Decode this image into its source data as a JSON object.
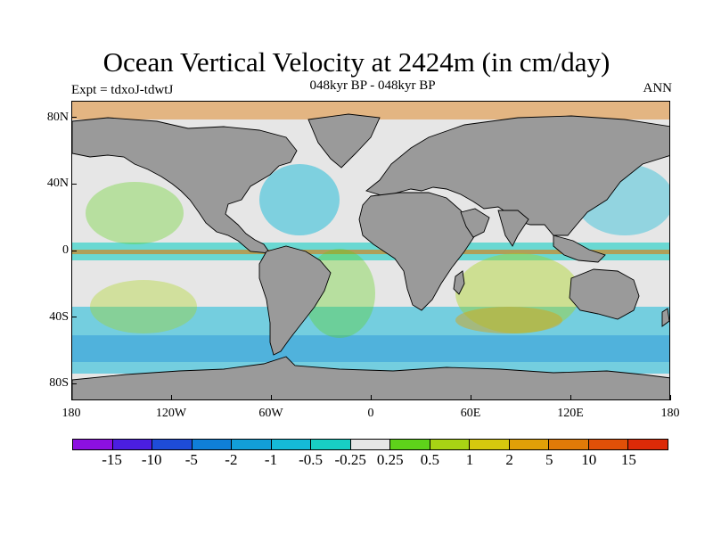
{
  "title": "Ocean Vertical Velocity at 2424m (in cm/day)",
  "subtitle_left": "Expt = tdxoJ-tdwtJ",
  "subtitle_center": "048kyr BP - 048kyr BP",
  "subtitle_right": "ANN",
  "map": {
    "projection": "cylindrical equidistant",
    "lon_range": [
      -180,
      180
    ],
    "lat_range": [
      -90,
      90
    ],
    "lat_labels": [
      {
        "lat": 80,
        "text": "80N"
      },
      {
        "lat": 40,
        "text": "40N"
      },
      {
        "lat": 0,
        "text": "0"
      },
      {
        "lat": -40,
        "text": "40S"
      },
      {
        "lat": -80,
        "text": "80S"
      }
    ],
    "lon_labels": [
      {
        "lon": -180,
        "text": "180"
      },
      {
        "lon": -120,
        "text": "120W"
      },
      {
        "lon": -60,
        "text": "60W"
      },
      {
        "lon": 0,
        "text": "0"
      },
      {
        "lon": 60,
        "text": "60E"
      },
      {
        "lon": 120,
        "text": "120E"
      },
      {
        "lon": 180,
        "text": "180"
      }
    ],
    "land_color": "#9a9a9a",
    "coast_color": "#000000"
  },
  "colorbar": {
    "colors": [
      "#8c10e0",
      "#4b1ee0",
      "#1e4cd8",
      "#0f7fd8",
      "#129ed8",
      "#15bad8",
      "#18cfc4",
      "#e6e6e6",
      "#5ed21a",
      "#a8d414",
      "#d6c80e",
      "#e0a008",
      "#e07a08",
      "#e05008",
      "#dc2a08"
    ],
    "labels": [
      "-15",
      "-10",
      "-5",
      "-2",
      "-1",
      "-0.5",
      "-0.25",
      "0.25",
      "0.5",
      "1",
      "2",
      "5",
      "10",
      "15"
    ]
  }
}
